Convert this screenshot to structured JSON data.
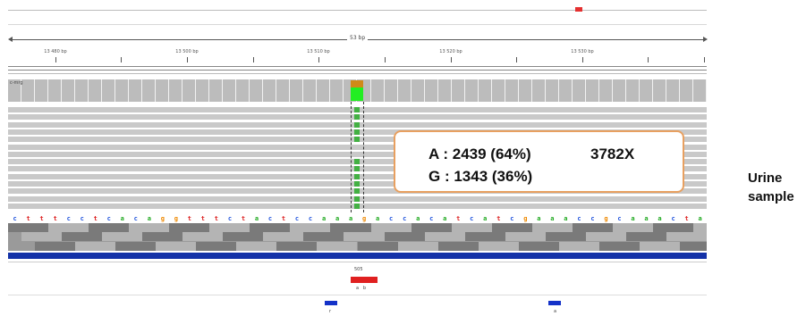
{
  "ruler": {
    "span_label": "53 bp",
    "ticks": [
      "13 480 bp",
      "13 500 bp",
      "13 510 bp",
      "13 520 bp",
      "13 530 bp"
    ]
  },
  "coverage": {
    "label": "c-mrg"
  },
  "callout": {
    "line1": "A : 2439 (64%)",
    "line2": "G : 1343 (36%)",
    "depth": "3782X"
  },
  "side_label": {
    "line1": "Urine",
    "line2": "sample"
  },
  "sequence": [
    "c",
    "t",
    "t",
    "t",
    "c",
    "c",
    "t",
    "c",
    "a",
    "c",
    "a",
    "g",
    "g",
    "t",
    "t",
    "t",
    "c",
    "t",
    "a",
    "c",
    "t",
    "c",
    "c",
    "a",
    "a",
    "a",
    "g",
    "a",
    "c",
    "c",
    "a",
    "c",
    "a",
    "t",
    "c",
    "a",
    "t",
    "c",
    "g",
    "a",
    "a",
    "a",
    "c",
    "c",
    "g",
    "c",
    "a",
    "a",
    "a",
    "c",
    "t",
    "a"
  ],
  "feature": {
    "name": "505"
  },
  "colors": {
    "A": "#22aa22",
    "C": "#2255dd",
    "G": "#ee8800",
    "T": "#dd2222",
    "ref_track": "#1432a8",
    "feature": "#e02020",
    "callout_border": "#e8a060",
    "coverage": "#bcbcbc"
  }
}
